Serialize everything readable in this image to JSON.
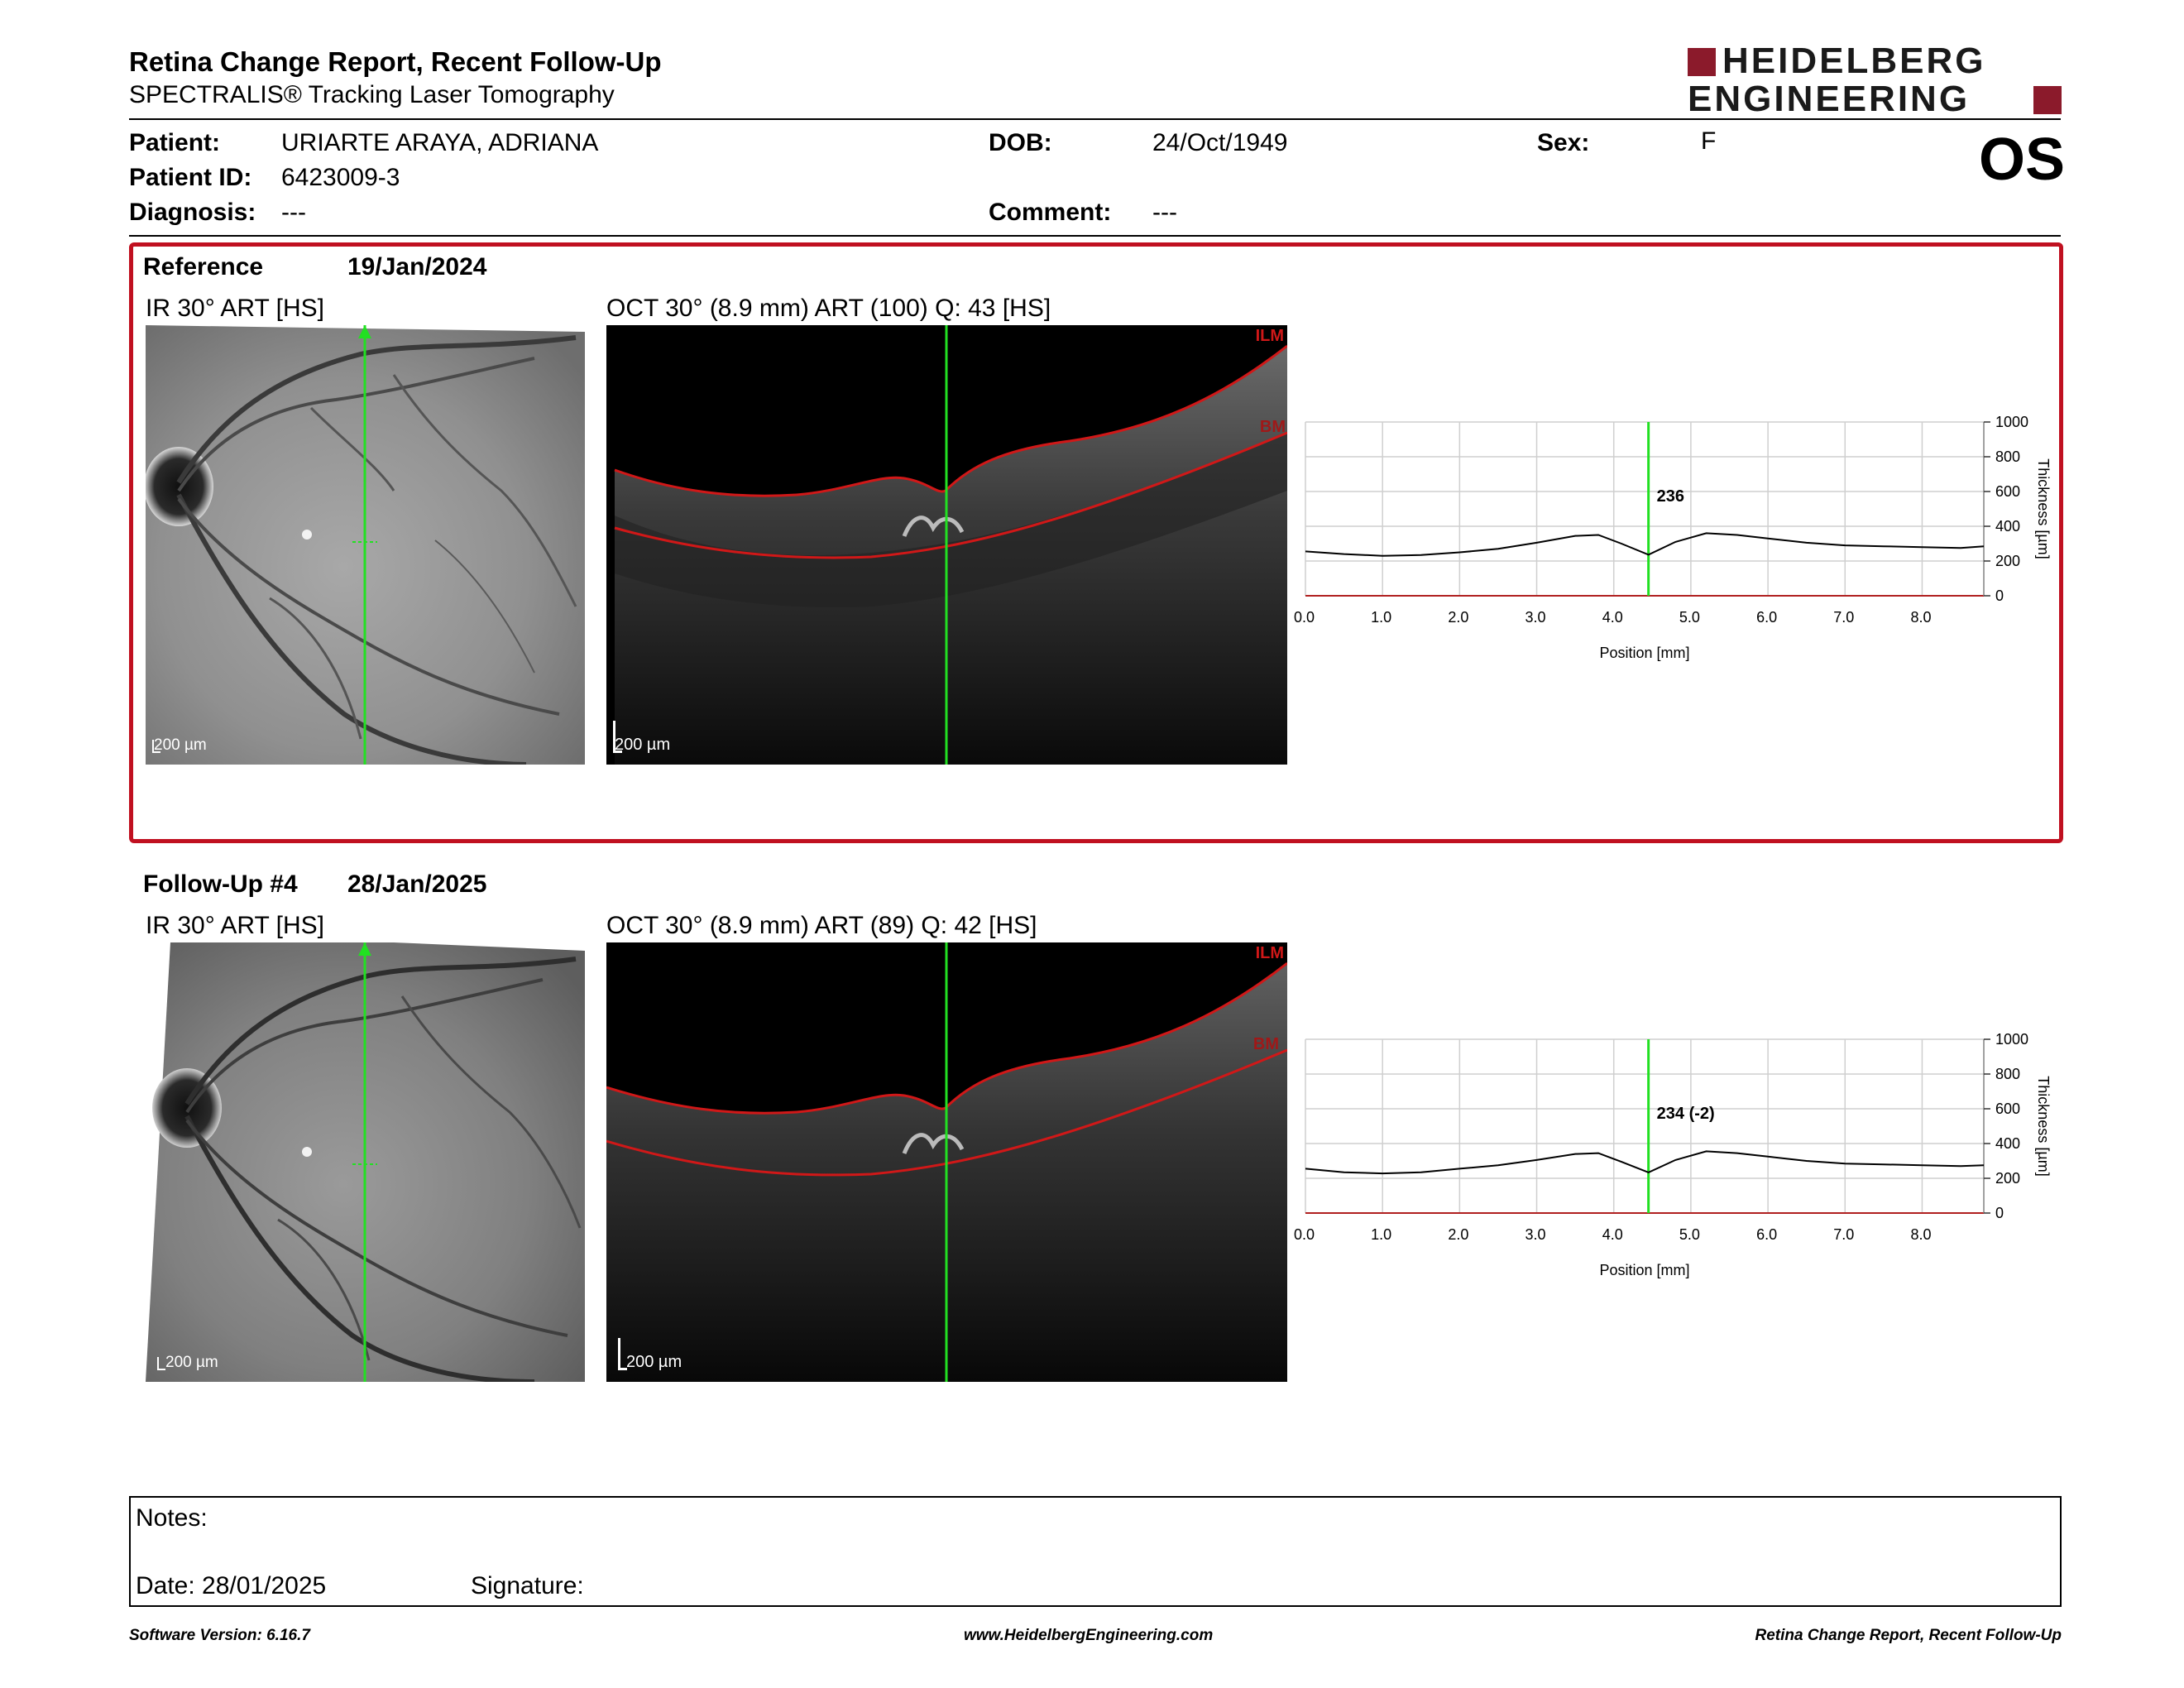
{
  "header": {
    "title": "Retina Change Report, Recent Follow-Up",
    "subtitle": "SPECTRALIS® Tracking Laser Tomography",
    "logo_line1": "HEIDELBERG",
    "logo_line2": "ENGINEERING",
    "brand_color": "#8b1a2b"
  },
  "patient": {
    "patient_label": "Patient:",
    "patient_value": "URIARTE ARAYA, ADRIANA",
    "id_label": "Patient ID:",
    "id_value": "6423009-3",
    "diagnosis_label": "Diagnosis:",
    "diagnosis_value": "---",
    "dob_label": "DOB:",
    "dob_value": "24/Oct/1949",
    "comment_label": "Comment:",
    "comment_value": "---",
    "sex_label": "Sex:",
    "sex_value": "F",
    "eye": "OS"
  },
  "reference": {
    "label": "Reference",
    "date": "19/Jan/2024",
    "ir_caption": "IR 30° ART [HS]",
    "oct_caption": "OCT 30° (8.9 mm) ART (100) Q: 43 [HS]",
    "scale": "200 µm",
    "ilm": "ILM",
    "bm": "BM",
    "thickness_label": "236"
  },
  "followup": {
    "label": "Follow-Up #4",
    "date": "28/Jan/2025",
    "ir_caption": "IR 30° ART [HS]",
    "oct_caption": "OCT 30° (8.9 mm) ART (89) Q: 42 [HS]",
    "scale": "200 µm",
    "ilm": "ILM",
    "bm": "BM",
    "thickness_label": "234 (-2)"
  },
  "chart_data": [
    {
      "type": "line",
      "xlabel": "Position [mm]",
      "ylabel": "Thickness [µm]",
      "xlim": [
        0,
        8.8
      ],
      "ylim": [
        0,
        1000
      ],
      "xticks": [
        "0.0",
        "1.0",
        "2.0",
        "3.0",
        "4.0",
        "5.0",
        "6.0",
        "7.0",
        "8.0"
      ],
      "yticks": [
        "0",
        "200",
        "400",
        "600",
        "800",
        "1000"
      ],
      "marker_x": 4.45,
      "marker_label": "236",
      "series": [
        {
          "x": [
            0,
            0.5,
            1.0,
            1.5,
            2.0,
            2.5,
            3.0,
            3.5,
            3.8,
            4.1,
            4.45,
            4.8,
            5.2,
            5.6,
            6.0,
            6.5,
            7.0,
            7.5,
            8.0,
            8.5,
            8.8
          ],
          "y": [
            255,
            240,
            230,
            235,
            250,
            270,
            305,
            345,
            350,
            300,
            236,
            310,
            360,
            350,
            330,
            305,
            290,
            285,
            280,
            275,
            285
          ]
        }
      ]
    },
    {
      "type": "line",
      "xlabel": "Position [mm]",
      "ylabel": "Thickness [µm]",
      "xlim": [
        0,
        8.8
      ],
      "ylim": [
        0,
        1000
      ],
      "xticks": [
        "0.0",
        "1.0",
        "2.0",
        "3.0",
        "4.0",
        "5.0",
        "6.0",
        "7.0",
        "8.0"
      ],
      "yticks": [
        "0",
        "200",
        "400",
        "600",
        "800",
        "1000"
      ],
      "marker_x": 4.45,
      "marker_label": "234 (-2)",
      "series": [
        {
          "x": [
            0,
            0.5,
            1.0,
            1.5,
            2.0,
            2.5,
            3.0,
            3.5,
            3.8,
            4.1,
            4.45,
            4.8,
            5.2,
            5.6,
            6.0,
            6.5,
            7.0,
            7.5,
            8.0,
            8.5,
            8.8
          ],
          "y": [
            255,
            235,
            228,
            235,
            255,
            275,
            305,
            340,
            345,
            295,
            234,
            305,
            355,
            345,
            325,
            300,
            285,
            280,
            275,
            270,
            275
          ]
        }
      ]
    }
  ],
  "notes": {
    "notes_label": "Notes:",
    "date_label": "Date: 28/01/2025",
    "signature_label": "Signature:"
  },
  "footer": {
    "software": "Software Version: 6.16.7",
    "website": "www.HeidelbergEngineering.com",
    "report": "Retina Change Report, Recent Follow-Up"
  }
}
